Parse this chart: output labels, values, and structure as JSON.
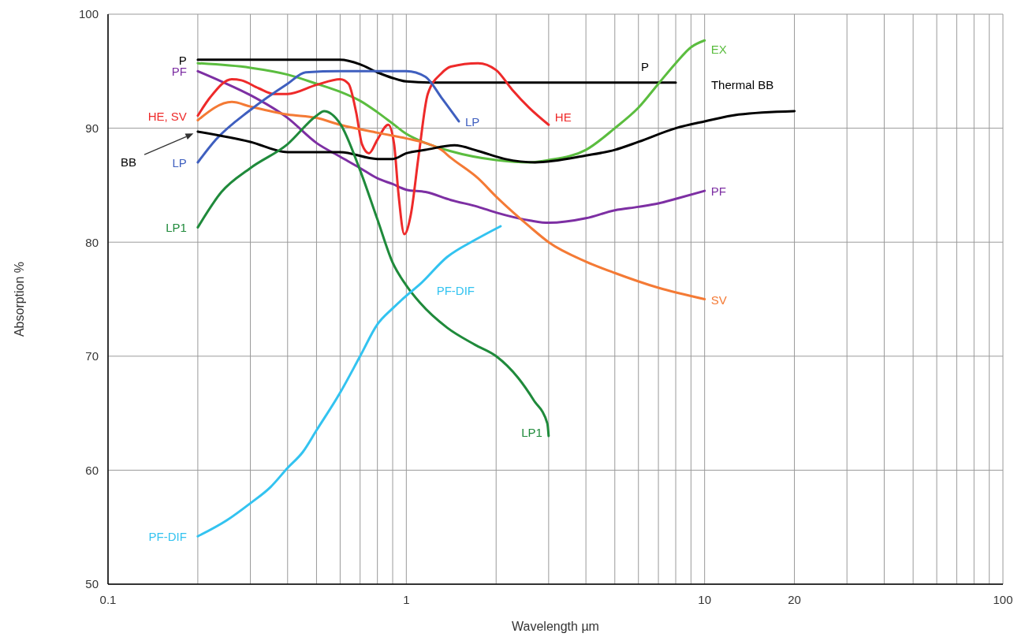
{
  "chart_data": {
    "type": "line",
    "xlabel": "Wavelength µm",
    "ylabel": "Absorption %",
    "log": "x",
    "xlim": [
      0.1,
      100
    ],
    "ylim": [
      50,
      100
    ],
    "xticks": [
      0.1,
      {
        "value": 0.2,
        "label": null
      },
      {
        "value": 0.3,
        "label": null
      },
      {
        "value": 0.4,
        "label": null
      },
      {
        "value": 0.5,
        "label": null
      },
      {
        "value": 0.6,
        "label": null
      },
      {
        "value": 0.7,
        "label": null
      },
      {
        "value": 0.8,
        "label": null
      },
      {
        "value": 0.9,
        "label": null
      },
      1,
      {
        "value": 2,
        "label": null
      },
      {
        "value": 3,
        "label": null
      },
      {
        "value": 4,
        "label": null
      },
      {
        "value": 5,
        "label": null
      },
      {
        "value": 6,
        "label": null
      },
      {
        "value": 7,
        "label": null
      },
      {
        "value": 8,
        "label": null
      },
      {
        "value": 9,
        "label": null
      },
      10,
      20,
      {
        "value": 30,
        "label": null
      },
      {
        "value": 40,
        "label": null
      },
      {
        "value": 50,
        "label": null
      },
      {
        "value": 60,
        "label": null
      },
      {
        "value": 70,
        "label": null
      },
      {
        "value": 80,
        "label": null
      },
      {
        "value": 90,
        "label": null
      },
      100
    ],
    "yticks": [
      50,
      60,
      70,
      80,
      90,
      100
    ],
    "grid": true,
    "marker": "none",
    "line_style": "solid",
    "series": [
      {
        "name": "P",
        "color": "#000000",
        "x": [
          0.2,
          0.6,
          0.7,
          0.8,
          0.9,
          1,
          1.2,
          8
        ],
        "values": [
          96,
          96,
          95.6,
          94.9,
          94.4,
          94.1,
          94,
          94
        ]
      },
      {
        "name": "EX",
        "color": "#5bbd3f",
        "x": [
          0.2,
          0.3,
          0.4,
          0.5,
          0.6,
          0.7,
          0.8,
          0.9,
          1,
          1.16,
          1.4,
          2,
          2.6,
          3,
          4,
          5,
          6,
          7,
          8,
          9,
          10
        ],
        "values": [
          95.7,
          95.3,
          94.7,
          93.9,
          93.2,
          92.4,
          91.4,
          90.4,
          89.5,
          88.7,
          88,
          87.2,
          87,
          87.2,
          88.1,
          90,
          91.8,
          93.9,
          95.7,
          97.1,
          97.7
        ]
      },
      {
        "name": "PF",
        "color": "#7d2fa3",
        "x": [
          0.2,
          0.24,
          0.3,
          0.4,
          0.5,
          0.6,
          0.7,
          0.8,
          0.9,
          1,
          1.16,
          1.41,
          1.74,
          2,
          2.6,
          3,
          4,
          5,
          6,
          7,
          8,
          10
        ],
        "values": [
          95,
          94.1,
          92.9,
          90.9,
          88.7,
          87.5,
          86.5,
          85.6,
          85.1,
          84.6,
          84.4,
          83.7,
          83.1,
          82.6,
          81.9,
          81.7,
          82.1,
          82.8,
          83.1,
          83.4,
          83.8,
          84.5
        ]
      },
      {
        "name": "HE",
        "color": "#ee2a2a",
        "x": [
          0.2,
          0.22,
          0.26,
          0.28,
          0.32,
          0.36,
          0.4,
          0.5,
          0.6,
          0.64,
          0.68,
          0.71,
          0.75,
          0.8,
          0.87,
          0.91,
          0.94,
          0.985,
          1.035,
          1.1,
          1.18,
          1.31,
          1.41,
          1.74,
          2,
          2.26,
          2.58,
          3
        ],
        "values": [
          91.1,
          92.7,
          94.3,
          94.2,
          93.5,
          93,
          93,
          93.8,
          94.3,
          93.9,
          91.3,
          88.6,
          87.8,
          89,
          90.3,
          88.6,
          84.4,
          80.7,
          82.4,
          87.6,
          93,
          94.8,
          95.4,
          95.7,
          95.1,
          93.4,
          91.8,
          90.3
        ]
      },
      {
        "name": "SV",
        "color": "#f47a35",
        "x": [
          0.2,
          0.26,
          0.3,
          0.4,
          0.5,
          0.6,
          0.8,
          1,
          1.16,
          1.31,
          1.41,
          1.74,
          2,
          2.58,
          3,
          4,
          5,
          7,
          10
        ],
        "values": [
          90.7,
          92.3,
          91.9,
          91.2,
          90.9,
          90.3,
          89.6,
          89.1,
          88.7,
          88.1,
          87.4,
          85.6,
          84,
          81.4,
          80,
          78.3,
          77.3,
          76,
          75
        ]
      },
      {
        "name": "LP",
        "color": "#3f5fbf",
        "x": [
          0.2,
          0.23,
          0.3,
          0.4,
          0.46,
          0.6,
          1,
          1.16,
          1.31,
          1.5
        ],
        "values": [
          87,
          89,
          91.6,
          93.9,
          94.9,
          95,
          95,
          94.5,
          92.7,
          90.6
        ]
      },
      {
        "color": "#000000",
        "x": [
          0.2,
          0.3,
          0.4,
          0.6,
          0.8,
          0.9,
          1,
          1.16,
          1.45,
          1.74,
          2.14,
          2.7,
          4,
          5,
          6,
          8,
          10,
          13,
          20
        ],
        "values": [
          89.7,
          88.8,
          87.9,
          87.9,
          87.3,
          87.3,
          87.8,
          88.1,
          88.5,
          88,
          87.3,
          87,
          87.6,
          88.1,
          88.8,
          90,
          90.6,
          91.2,
          91.5
        ]
      },
      {
        "name": "LP1",
        "color": "#1f8a3b",
        "x": [
          0.2,
          0.24,
          0.3,
          0.4,
          0.5,
          0.53,
          0.6,
          0.7,
          0.8,
          0.9,
          1,
          1.11,
          1.37,
          1.7,
          2,
          2.37,
          2.68,
          2.97,
          3
        ],
        "values": [
          81.3,
          84.4,
          86.5,
          88.6,
          91.1,
          91.5,
          90.4,
          86.3,
          82,
          78.2,
          76.2,
          74.7,
          72.5,
          71,
          70,
          68.1,
          66.1,
          64.1,
          63
        ]
      },
      {
        "name": "PF-DIF",
        "color": "#33c3f0",
        "x": [
          0.2,
          0.25,
          0.3,
          0.35,
          0.4,
          0.45,
          0.5,
          0.6,
          0.7,
          0.8,
          0.9,
          1,
          1.11,
          1.37,
          1.7,
          2.07
        ],
        "values": [
          54.2,
          55.6,
          57.1,
          58.5,
          60.2,
          61.6,
          63.5,
          66.8,
          70,
          72.8,
          74.2,
          75.3,
          76.3,
          78.7,
          80.2,
          81.4
        ]
      }
    ],
    "annotations": [
      "P",
      "PF",
      "HE, SV",
      "BB",
      "LP",
      "LP1",
      "PF-DIF",
      "Thermal BB"
    ]
  }
}
